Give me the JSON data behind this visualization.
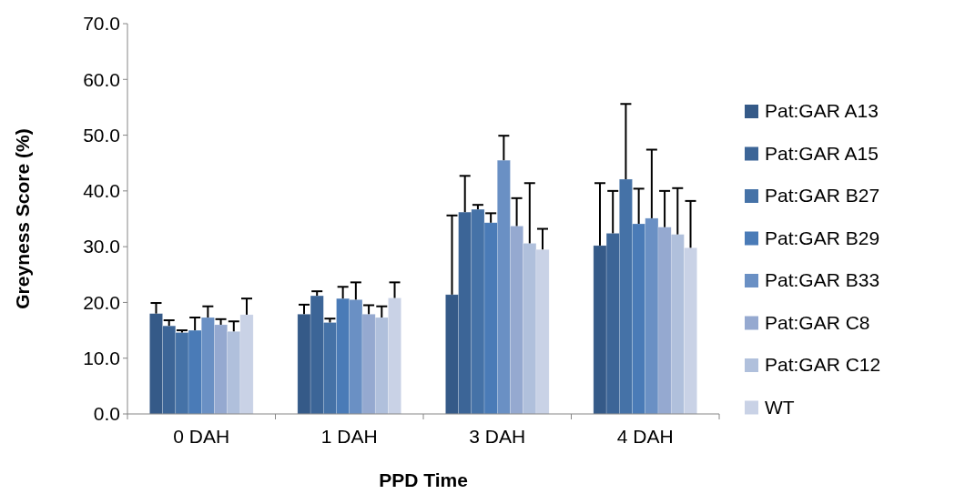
{
  "chart_data": {
    "type": "bar",
    "xlabel": "PPD Time",
    "ylabel": "Greyness Score (%)",
    "categories": [
      "0 DAH",
      "1 DAH",
      "3 DAH",
      "4 DAH"
    ],
    "ylim": [
      0,
      70
    ],
    "yticks": [
      {
        "value": 0,
        "label": "0.0"
      },
      {
        "value": 10,
        "label": "10.0"
      },
      {
        "value": 20,
        "label": "20.0"
      },
      {
        "value": 30,
        "label": "30.0"
      },
      {
        "value": 40,
        "label": "40.0"
      },
      {
        "value": 50,
        "label": "50.0"
      },
      {
        "value": 60,
        "label": "60.0"
      },
      {
        "value": 70,
        "label": "70.0"
      }
    ],
    "grid": false,
    "legend": "right",
    "series": [
      {
        "name": "Pat:GAR A13",
        "color": "#355a88",
        "values": [
          18.0,
          17.9,
          21.4,
          30.2
        ],
        "errors": [
          [
            18.0,
            19.9
          ],
          [
            17.9,
            19.6
          ],
          [
            21.4,
            35.6
          ],
          [
            30.2,
            41.4
          ]
        ]
      },
      {
        "name": "Pat:GAR A15",
        "color": "#3c6597",
        "values": [
          15.8,
          21.2,
          36.2,
          32.4
        ],
        "errors": [
          [
            15.8,
            16.8
          ],
          [
            21.2,
            22.0
          ],
          [
            36.2,
            42.7
          ],
          [
            32.4,
            40.0
          ]
        ]
      },
      {
        "name": "Pat:GAR B27",
        "color": "#4572a7",
        "values": [
          14.6,
          16.4,
          36.7,
          42.1
        ],
        "errors": [
          [
            14.6,
            15.0
          ],
          [
            16.4,
            17.1
          ],
          [
            36.7,
            37.5
          ],
          [
            42.1,
            55.6
          ]
        ]
      },
      {
        "name": "Pat:GAR B29",
        "color": "#4a7bb7",
        "values": [
          15.0,
          20.7,
          34.3,
          34.1
        ],
        "errors": [
          [
            15.0,
            17.3
          ],
          [
            20.7,
            22.8
          ],
          [
            34.3,
            36.0
          ],
          [
            34.1,
            40.4
          ]
        ]
      },
      {
        "name": "Pat:GAR B33",
        "color": "#6a90c4",
        "values": [
          17.3,
          20.5,
          45.5,
          35.1
        ],
        "errors": [
          [
            17.3,
            19.3
          ],
          [
            20.5,
            23.6
          ],
          [
            45.5,
            49.9
          ],
          [
            35.1,
            47.4
          ]
        ]
      },
      {
        "name": "Pat:GAR C8",
        "color": "#95a9d0",
        "values": [
          16.0,
          17.9,
          33.7,
          33.5
        ],
        "errors": [
          [
            16.0,
            17.0
          ],
          [
            17.9,
            19.5
          ],
          [
            33.7,
            38.7
          ],
          [
            33.5,
            40.0
          ]
        ]
      },
      {
        "name": "Pat:GAR C12",
        "color": "#b0c0dc",
        "values": [
          14.8,
          17.3,
          30.6,
          32.2
        ],
        "errors": [
          [
            14.8,
            16.6
          ],
          [
            17.3,
            19.3
          ],
          [
            30.6,
            41.4
          ],
          [
            32.2,
            40.5
          ]
        ]
      },
      {
        "name": "WT",
        "color": "#c9d2e6",
        "values": [
          17.8,
          20.8,
          29.5,
          29.8
        ],
        "errors": [
          [
            17.8,
            20.7
          ],
          [
            20.8,
            23.6
          ],
          [
            29.5,
            33.2
          ],
          [
            29.8,
            38.2
          ]
        ]
      }
    ]
  }
}
